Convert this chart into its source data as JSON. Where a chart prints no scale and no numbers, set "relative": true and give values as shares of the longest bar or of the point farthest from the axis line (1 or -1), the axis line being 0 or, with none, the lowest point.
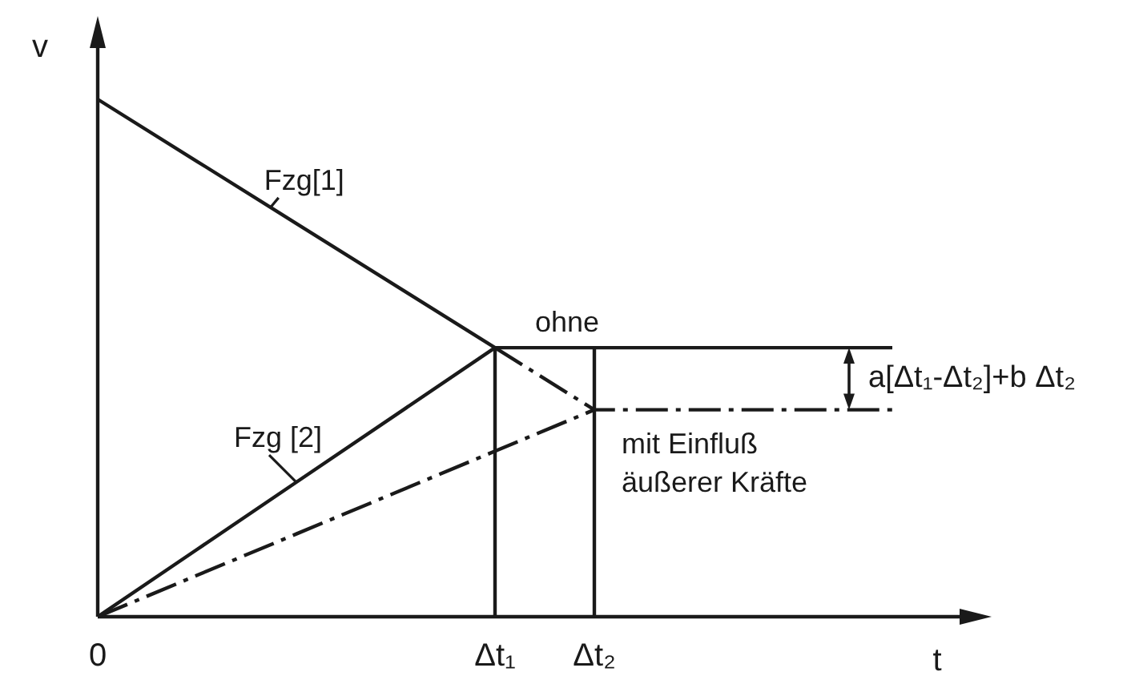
{
  "chart_data": {
    "type": "line",
    "xlabel": "t",
    "ylabel": "v",
    "relative": true,
    "categories": [
      "0",
      null,
      null,
      null,
      "Δt₁",
      "Δt₂",
      null,
      null,
      null
    ],
    "series": [
      {
        "name": "Fzg[1]",
        "color": "#1a1a1a",
        "values": [
          1,
          0.88,
          0.76,
          0.64,
          0.52,
          null,
          null,
          null,
          null
        ]
      },
      {
        "name": "Fzg [2]",
        "color": "#1a1a1a",
        "values": [
          0,
          0.13,
          0.26,
          0.39,
          0.52,
          null,
          null,
          null,
          null
        ]
      },
      {
        "name": "ohne",
        "color": "#1a1a1a",
        "values": [
          null,
          null,
          null,
          null,
          0.52,
          0.52,
          0.52,
          0.52,
          0.52
        ]
      },
      {
        "name": "mit Einfluß äußerer Kräfte",
        "color": "#1a1a1a",
        "values": [
          null,
          null,
          null,
          null,
          0.52,
          0.4,
          0.4,
          0.4,
          0.4
        ],
        "line_style": "dashed"
      },
      {
        "color": "#1a1a1a",
        "values": [
          0,
          0.08,
          0.16,
          0.24,
          0.32,
          0.4,
          null,
          null,
          null
        ],
        "line_style": "dashed"
      }
    ],
    "ref_lines": [
      {
        "axis": "x",
        "value": "Δt₁",
        "color": "#1a1a1a"
      },
      {
        "axis": "x",
        "value": "Δt₂",
        "color": "#1a1a1a"
      }
    ],
    "annotations": [
      "a[Δt₁-Δt₂]+b Δt₂"
    ],
    "marker": "none",
    "legend": false,
    "grid": false,
    "tick_labels": "x"
  }
}
